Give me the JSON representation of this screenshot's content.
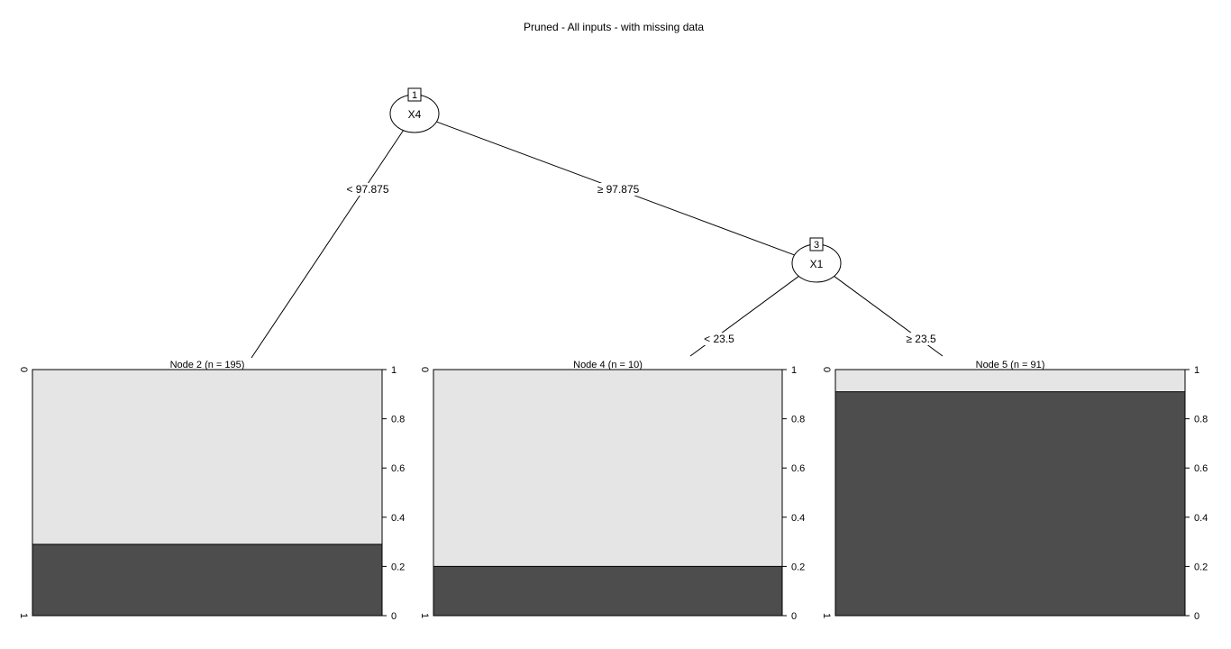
{
  "title": "Pruned - All inputs - with missing data",
  "colors": {
    "class_0": "#e5e5e5",
    "class_1": "#4d4d4d",
    "line": "#000000"
  },
  "inner_nodes": [
    {
      "id": "1",
      "variable": "X4"
    },
    {
      "id": "3",
      "variable": "X1"
    }
  ],
  "splits": [
    {
      "from": "1",
      "to": "2",
      "label": "< 97.875"
    },
    {
      "from": "1",
      "to": "3",
      "label": "≥ 97.875"
    },
    {
      "from": "3",
      "to": "4",
      "label": "< 23.5"
    },
    {
      "from": "3",
      "to": "5",
      "label": "≥ 23.5"
    }
  ],
  "chart_data": {
    "type": "bar",
    "stacked": true,
    "categories_axis_labels": [
      "0",
      "1"
    ],
    "right_axis_ticks": [
      "0",
      "0.2",
      "0.4",
      "0.6",
      "0.8",
      "1"
    ],
    "ylim": [
      0,
      1
    ],
    "leaves": [
      {
        "id": "2",
        "label": "Node 2 (n = 195)",
        "n": 195,
        "proportion_class_0": 0.71,
        "proportion_class_1": 0.29
      },
      {
        "id": "4",
        "label": "Node 4 (n = 10)",
        "n": 10,
        "proportion_class_0": 0.8,
        "proportion_class_1": 0.2
      },
      {
        "id": "5",
        "label": "Node 5 (n = 91)",
        "n": 91,
        "proportion_class_0": 0.09,
        "proportion_class_1": 0.91
      }
    ]
  }
}
